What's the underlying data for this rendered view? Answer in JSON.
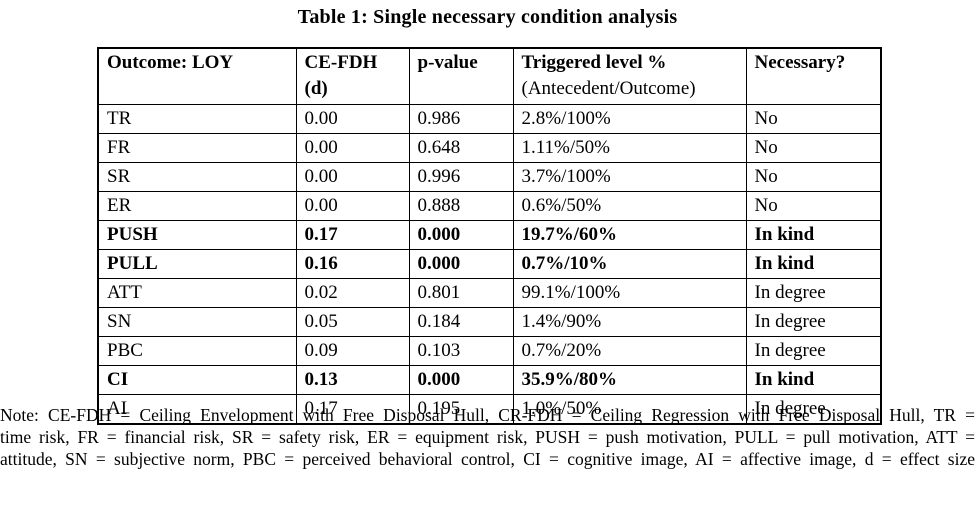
{
  "title": "Table 1: Single necessary condition analysis",
  "table": {
    "headers": [
      {
        "line1": "Outcome: LOY",
        "line2": ""
      },
      {
        "line1": "CE-FDH",
        "line2": "(d)"
      },
      {
        "line1": "p-value",
        "line2": ""
      },
      {
        "line1": "Triggered level %",
        "line2": "(Antecedent/Outcome)"
      },
      {
        "line1": "Necessary?",
        "line2": ""
      }
    ],
    "rows": [
      {
        "outcome": "TR",
        "ce_fdh": "0.00",
        "p_value": "0.986",
        "triggered_level": "2.8%/100%",
        "necessary": "No"
      },
      {
        "outcome": "FR",
        "ce_fdh": "0.00",
        "p_value": "0.648",
        "triggered_level": "1.11%/50%",
        "necessary": "No"
      },
      {
        "outcome": "SR",
        "ce_fdh": "0.00",
        "p_value": "0.996",
        "triggered_level": "3.7%/100%",
        "necessary": "No"
      },
      {
        "outcome": "ER",
        "ce_fdh": "0.00",
        "p_value": "0.888",
        "triggered_level": "0.6%/50%",
        "necessary": "No"
      },
      {
        "outcome": "PUSH",
        "ce_fdh": "0.17",
        "p_value": "0.000",
        "triggered_level": "19.7%/60%",
        "necessary": "In kind"
      },
      {
        "outcome": "PULL",
        "ce_fdh": "0.16",
        "p_value": "0.000",
        "triggered_level": "0.7%/10%",
        "necessary": "In kind"
      },
      {
        "outcome": "ATT",
        "ce_fdh": "0.02",
        "p_value": "0.801",
        "triggered_level": "99.1%/100%",
        "necessary": "In degree"
      },
      {
        "outcome": "SN",
        "ce_fdh": "0.05",
        "p_value": "0.184",
        "triggered_level": "1.4%/90%",
        "necessary": "In degree"
      },
      {
        "outcome": "PBC",
        "ce_fdh": "0.09",
        "p_value": "0.103",
        "triggered_level": "0.7%/20%",
        "necessary": "In degree"
      },
      {
        "outcome": "CI",
        "ce_fdh": "0.13",
        "p_value": "0.000",
        "triggered_level": "35.9%/80%",
        "necessary": "In kind"
      },
      {
        "outcome": "AI",
        "ce_fdh": "0.17",
        "p_value": "0.195",
        "triggered_level": "1.0%/50%",
        "necessary": "In degree"
      }
    ],
    "bold_rows": [
      "PUSH",
      "PULL",
      "CI"
    ]
  },
  "note_lines": [
    "Note: CE-FDH = Ceiling Envelopment with Free Disposal Hull, CR-FDH = Ceiling Regression with Free Disposal Hull, TR =",
    "time risk, FR = financial risk, SR = safety risk, ER = equipment risk, PUSH = push motivation, PULL = pull motivation, ATT =",
    "attitude, SN = subjective norm, PBC = perceived behavioral control, CI = cognitive image, AI = affective image, d = effect size"
  ],
  "colors": {
    "text": "#000000",
    "background": "#ffffff",
    "border": "#000000"
  }
}
